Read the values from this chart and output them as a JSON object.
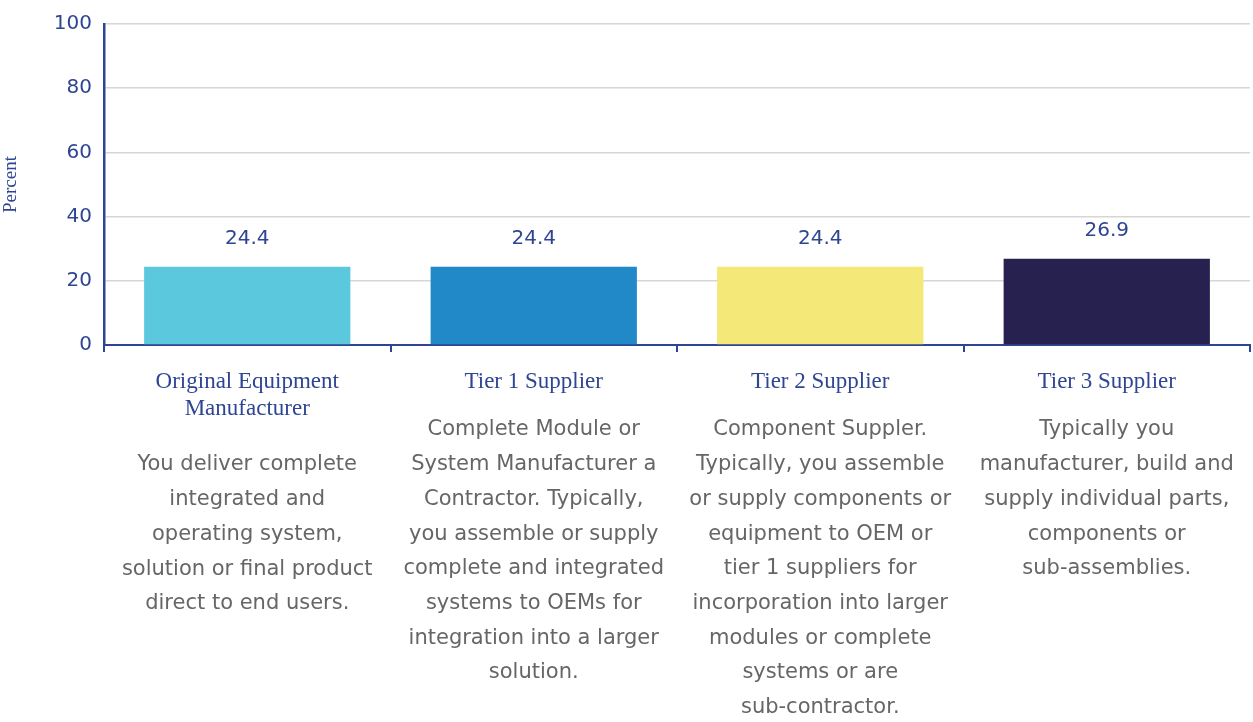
{
  "chart_data": {
    "type": "bar",
    "ylabel": "Percent",
    "categories": [
      "Original Equipment Manufacturer",
      "Tier 1 Supplier",
      "Tier 2 Supplier",
      "Tier 3 Supplier"
    ],
    "values": [
      24.4,
      24.4,
      24.4,
      26.9
    ],
    "colors": [
      "#5bc8dd",
      "#2289c9",
      "#f4e878",
      "#27214f"
    ],
    "ylim": [
      0,
      100
    ],
    "yticks": [
      0,
      20,
      40,
      60,
      80,
      100
    ],
    "grid": "y",
    "data_labels": true,
    "legend": false,
    "annotations": [
      "You deliver complete integrated and operating system, solution or final product direct to end users.",
      "Complete Module or System Manufacturer a Contractor. Typically, you assemble or supply complete and integrated systems to OEMs for integration into a larger solution.",
      "Component Suppler. Typically, you assemble or supply components or equipment to OEM or tier 1 suppliers for incorporation into larger modules or complete systems or are sub-contractor.",
      "Typically you manufacturer, build and supply individual parts, components or sub-assemblies."
    ]
  }
}
